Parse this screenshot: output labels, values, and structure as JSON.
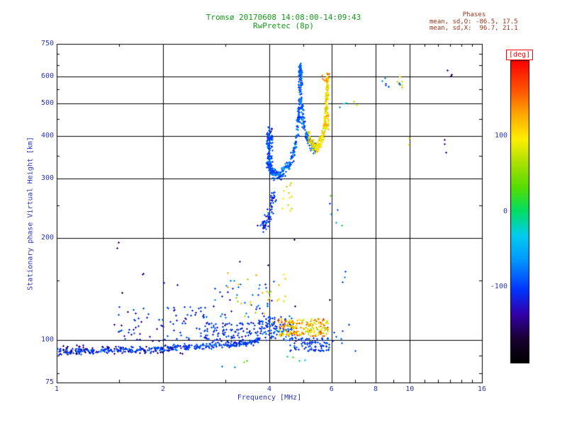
{
  "colors": {
    "title": "#14991a",
    "stats": "#a03418",
    "axis_text": "#2a35b0",
    "frame": "#000000",
    "deg_label": "#ff0000",
    "background": "#ffffff"
  },
  "chart_data": {
    "type": "scatter",
    "title": "Tromsø 20170608 14:08:00-14:09:43",
    "subtitle": "RwPretec (8p)",
    "xlabel": "Frequency [MHz]",
    "ylabel": "Stationary phase Virtual Height [km]",
    "xscale": "log",
    "yscale": "log",
    "xlim": [
      1,
      16
    ],
    "ylim": [
      75,
      750
    ],
    "xticks": [
      1,
      2,
      4,
      6,
      8,
      10,
      16
    ],
    "yticks": [
      75,
      100,
      200,
      300,
      400,
      500,
      600,
      750
    ],
    "grid_x": [
      2,
      4,
      6,
      8,
      10
    ],
    "grid_y": [
      100,
      200,
      300,
      400,
      500,
      600
    ],
    "minor_x": [
      1.5,
      3,
      5,
      7,
      9,
      11,
      12,
      13,
      14,
      15
    ],
    "minor_y": [
      80,
      90,
      150,
      250,
      350,
      450,
      550,
      650,
      700
    ],
    "stats": {
      "header": "Phases",
      "o_line": "mean, sd,O: -86.5, 17.5",
      "x_line": "mean, sd,X:  96.7, 21.1"
    },
    "colorbar": {
      "label": "[deg]",
      "ticks": [
        100,
        0,
        -100
      ],
      "range": [
        -200,
        200
      ]
    },
    "colormap": [
      [
        0.0,
        "#000000"
      ],
      [
        0.08,
        "#1a0033"
      ],
      [
        0.16,
        "#3300aa"
      ],
      [
        0.24,
        "#0033ff"
      ],
      [
        0.34,
        "#0099ff"
      ],
      [
        0.42,
        "#00ccee"
      ],
      [
        0.5,
        "#00dd66"
      ],
      [
        0.58,
        "#55dd00"
      ],
      [
        0.66,
        "#aae000"
      ],
      [
        0.74,
        "#ffee00"
      ],
      [
        0.82,
        "#ffaa00"
      ],
      [
        0.9,
        "#ff5500"
      ],
      [
        1.0,
        "#ff0000"
      ]
    ],
    "clusters": [
      {
        "name": "e-baseline",
        "kind": "trace",
        "n": 380,
        "path": [
          [
            1.0,
            93
          ],
          [
            1.25,
            93
          ],
          [
            1.5,
            94
          ],
          [
            1.8,
            94
          ],
          [
            2.1,
            95
          ],
          [
            2.5,
            96
          ],
          [
            3.0,
            97
          ],
          [
            3.4,
            98
          ],
          [
            3.7,
            100
          ]
        ],
        "xjit": 0.012,
        "yjit": 0.02,
        "phase": [
          -120,
          -78
        ]
      },
      {
        "name": "e-baseline-dark",
        "kind": "box",
        "n": 55,
        "x": [
          1.02,
          2.3
        ],
        "y": [
          91,
          97
        ],
        "phase": [
          -165,
          -125
        ]
      },
      {
        "name": "e-scatter-left",
        "kind": "box",
        "n": 85,
        "x": [
          1.45,
          2.65
        ],
        "y": [
          99,
          126
        ],
        "phase": [
          -145,
          -82
        ]
      },
      {
        "name": "e-mid",
        "kind": "box",
        "n": 100,
        "x": [
          2.6,
          3.65
        ],
        "y": [
          97,
          113
        ],
        "phase": [
          -132,
          -85
        ]
      },
      {
        "name": "e-scatter-mid-blue",
        "kind": "box",
        "n": 45,
        "x": [
          2.75,
          4.25
        ],
        "y": [
          112,
          150
        ],
        "phase": [
          -142,
          -62
        ]
      },
      {
        "name": "e-scatter-mid-warm",
        "kind": "box",
        "n": 28,
        "x": [
          3.0,
          4.7
        ],
        "y": [
          112,
          158
        ],
        "phase": [
          45,
          145
        ]
      },
      {
        "name": "e-step",
        "kind": "box",
        "n": 125,
        "x": [
          3.6,
          4.65
        ],
        "y": [
          100,
          118
        ],
        "phase": [
          -122,
          -72
        ]
      },
      {
        "name": "e-warm-band",
        "kind": "box",
        "n": 200,
        "x": [
          4.25,
          5.85
        ],
        "y": [
          103,
          116
        ],
        "phase": [
          55,
          175
        ]
      },
      {
        "name": "e-blue-right",
        "kind": "box",
        "n": 90,
        "x": [
          4.55,
          5.9
        ],
        "y": [
          93,
          102
        ],
        "phase": [
          -120,
          -78
        ]
      },
      {
        "name": "e-below",
        "kind": "box",
        "n": 8,
        "x": [
          2.9,
          5.2
        ],
        "y": [
          82,
          90
        ],
        "phase": [
          -120,
          140
        ]
      },
      {
        "name": "d-blue",
        "kind": "trace",
        "n": 65,
        "path": [
          [
            3.8,
            214
          ],
          [
            3.9,
            222
          ],
          [
            3.98,
            232
          ],
          [
            4.05,
            248
          ],
          [
            4.1,
            262
          ],
          [
            4.15,
            270
          ]
        ],
        "xjit": 0.02,
        "yjit": 0.05,
        "phase": [
          -132,
          -80
        ]
      },
      {
        "name": "d-warm",
        "kind": "box",
        "n": 12,
        "x": [
          4.35,
          4.62
        ],
        "y": [
          235,
          300
        ],
        "phase": [
          55,
          130
        ]
      },
      {
        "name": "f-o-trace",
        "kind": "trace",
        "n": 430,
        "path": [
          [
            3.96,
            395
          ],
          [
            3.99,
            345
          ],
          [
            4.03,
            318
          ],
          [
            4.12,
            311
          ],
          [
            4.27,
            309
          ],
          [
            4.42,
            317
          ],
          [
            4.56,
            334
          ],
          [
            4.7,
            364
          ],
          [
            4.8,
            418
          ],
          [
            4.85,
            515
          ],
          [
            4.88,
            648
          ],
          [
            4.9,
            600
          ],
          [
            4.93,
            500
          ],
          [
            4.98,
            448
          ],
          [
            5.05,
            412
          ],
          [
            5.15,
            390
          ],
          [
            5.28,
            376
          ],
          [
            5.4,
            367
          ]
        ],
        "xjit": 0.008,
        "yjit": 0.035,
        "phase": [
          -116,
          -58
        ]
      },
      {
        "name": "f-o-spread",
        "kind": "box",
        "n": 75,
        "x": [
          3.93,
          4.07
        ],
        "y": [
          315,
          428
        ],
        "phase": [
          -120,
          -78
        ]
      },
      {
        "name": "f-o-cusp",
        "kind": "box",
        "n": 40,
        "x": [
          4.83,
          4.94
        ],
        "y": [
          430,
          655
        ],
        "phase": [
          -112,
          -70
        ]
      },
      {
        "name": "f-x-trace",
        "kind": "trace",
        "n": 240,
        "path": [
          [
            5.16,
            402
          ],
          [
            5.26,
            381
          ],
          [
            5.37,
            371
          ],
          [
            5.5,
            374
          ],
          [
            5.62,
            391
          ],
          [
            5.71,
            424
          ],
          [
            5.77,
            475
          ],
          [
            5.81,
            545
          ],
          [
            5.84,
            602
          ]
        ],
        "xjit": 0.008,
        "yjit": 0.035,
        "phase": [
          62,
          132
        ]
      },
      {
        "name": "f-x-cusp",
        "kind": "box",
        "n": 55,
        "x": [
          5.76,
          5.88
        ],
        "y": [
          420,
          605
        ],
        "phase": [
          68,
          140
        ]
      },
      {
        "name": "f-x-top",
        "kind": "box",
        "n": 9,
        "x": [
          5.62,
          5.9
        ],
        "y": [
          585,
          622
        ],
        "phase": [
          115,
          172
        ]
      },
      {
        "name": "mid-right-sparse",
        "kind": "box",
        "n": 6,
        "x": [
          5.9,
          6.45
        ],
        "y": [
          195,
          300
        ],
        "phase": [
          -110,
          120
        ]
      },
      {
        "name": "iso-upper-6-7",
        "kind": "box",
        "n": 5,
        "x": [
          6.3,
          7.1
        ],
        "y": [
          460,
          510
        ],
        "phase": [
          -85,
          115
        ]
      },
      {
        "name": "iso-155",
        "kind": "box",
        "n": 3,
        "x": [
          6.35,
          6.6
        ],
        "y": [
          148,
          162
        ],
        "phase": [
          -105,
          -62
        ]
      },
      {
        "name": "iso-8-blue",
        "kind": "box",
        "n": 5,
        "x": [
          8.3,
          8.7
        ],
        "y": [
          550,
          595
        ],
        "phase": [
          -108,
          -62
        ]
      },
      {
        "name": "iso-9-warm",
        "kind": "box",
        "n": 6,
        "x": [
          9.2,
          9.55
        ],
        "y": [
          555,
          608
        ],
        "phase": [
          58,
          128
        ]
      },
      {
        "name": "iso-9-blue",
        "kind": "box",
        "n": 2,
        "x": [
          9.3,
          9.5
        ],
        "y": [
          562,
          578
        ],
        "phase": [
          -100,
          -80
        ]
      },
      {
        "name": "iso-10-warm",
        "kind": "box",
        "n": 2,
        "x": [
          9.82,
          10.05
        ],
        "y": [
          378,
          400
        ],
        "phase": [
          72,
          112
        ]
      },
      {
        "name": "iso-13-dark",
        "kind": "box",
        "n": 3,
        "x": [
          12.3,
          13.2
        ],
        "y": [
          592,
          645
        ],
        "phase": [
          -172,
          -140
        ]
      },
      {
        "name": "iso-12-dark",
        "kind": "box",
        "n": 3,
        "x": [
          12.4,
          12.9
        ],
        "y": [
          355,
          392
        ],
        "phase": [
          -168,
          -118
        ]
      },
      {
        "name": "e-right-tail",
        "kind": "box",
        "n": 8,
        "x": [
          6.0,
          7.05
        ],
        "y": [
          93,
          112
        ],
        "phase": [
          -112,
          -70
        ]
      },
      {
        "name": "sparse-specks",
        "kind": "box",
        "n": 12,
        "x": [
          1.2,
          6.2
        ],
        "y": [
          120,
          205
        ],
        "phase": [
          -178,
          -108
        ]
      }
    ]
  }
}
